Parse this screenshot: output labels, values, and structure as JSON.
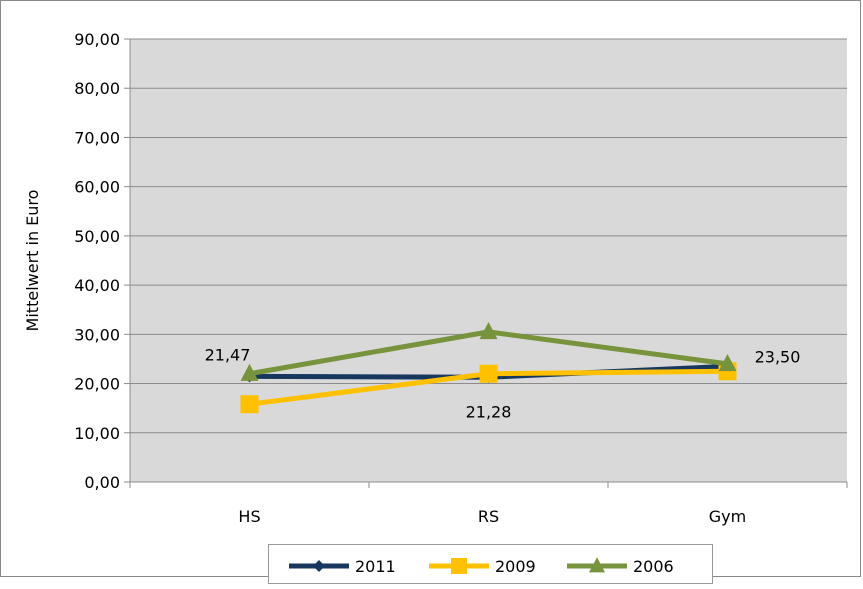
{
  "chart_data": {
    "type": "line",
    "title": "",
    "ylabel": "Mittelwert in Euro",
    "xlabel": "",
    "categories": [
      "HS",
      "RS",
      "Gym"
    ],
    "ylim": [
      0,
      90
    ],
    "yticks": [
      "0,00",
      "10,00",
      "20,00",
      "30,00",
      "40,00",
      "50,00",
      "60,00",
      "70,00",
      "80,00",
      "90,00"
    ],
    "grid": true,
    "legend": "bottom",
    "series": [
      {
        "name": "2011",
        "values": [
          21.47,
          21.28,
          23.5
        ],
        "color": "#17375e",
        "marker": "diamond",
        "labels": [
          "21,47",
          "21,28",
          "23,50"
        ]
      },
      {
        "name": "2009",
        "values": [
          15.8,
          22.0,
          22.5
        ],
        "color": "#ffc000",
        "marker": "square",
        "labels": []
      },
      {
        "name": "2006",
        "values": [
          22.0,
          30.5,
          24.0
        ],
        "color": "#77933c",
        "marker": "triangle",
        "labels": []
      }
    ]
  }
}
